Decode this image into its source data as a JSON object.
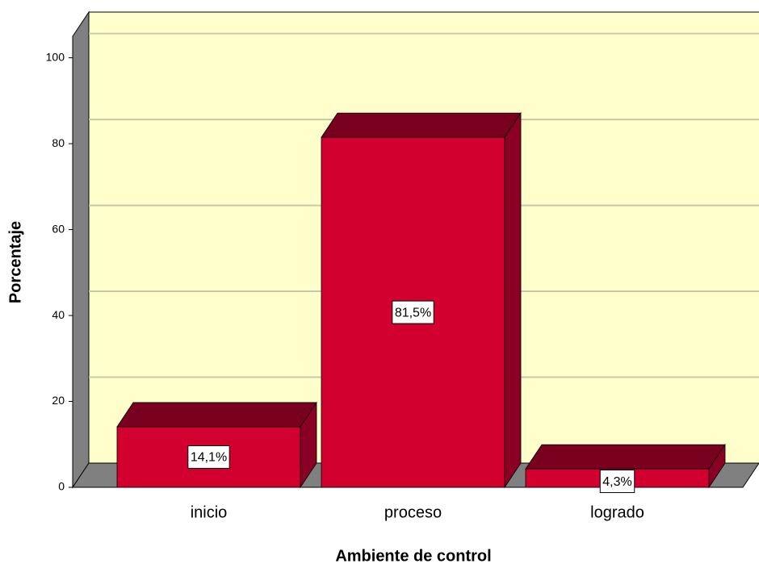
{
  "chart_data": {
    "type": "bar3d",
    "x_label": "Ambiente de control",
    "y_label": "Porcentaje",
    "categories": [
      "inicio",
      "proceso",
      "logrado"
    ],
    "values": [
      14.1,
      81.5,
      4.3
    ],
    "value_labels": [
      "14,1%",
      "81,5%",
      "4,3%"
    ],
    "color": "#d2002f",
    "ylim": [
      0,
      105
    ],
    "yticks": [
      0,
      20,
      40,
      60,
      80,
      100
    ],
    "grid": true
  }
}
